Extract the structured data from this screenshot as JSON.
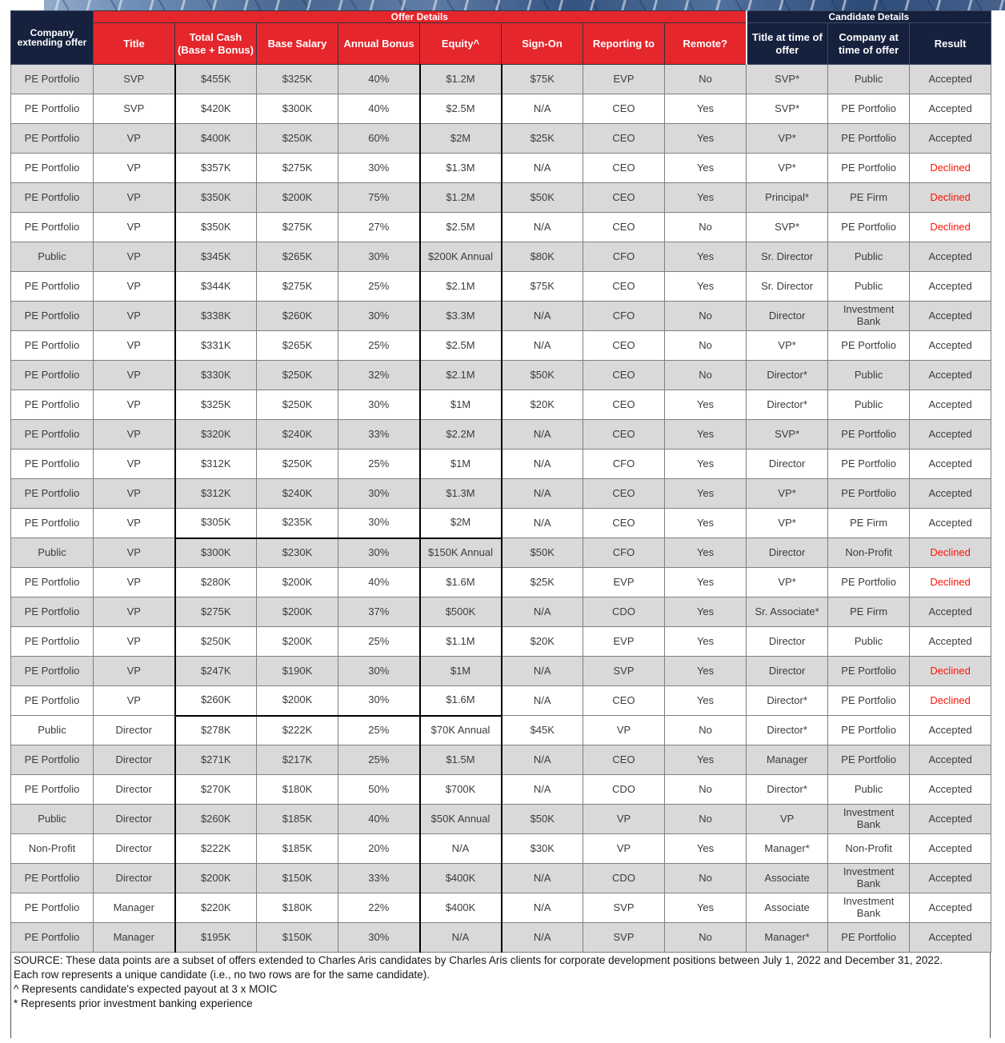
{
  "header": {
    "offer_group_label": "Offer Details",
    "candidate_group_label": "Candidate Details",
    "columns": [
      "Company extending offer",
      "Title",
      "Total Cash (Base + Bonus)",
      "Base Salary",
      "Annual Bonus",
      "Equity^",
      "Sign-On",
      "Reporting to",
      "Remote?",
      "Title at time of offer",
      "Company at time of offer",
      "Result"
    ]
  },
  "declined_value": "Declined",
  "colors": {
    "header_red": "#E5262C",
    "header_navy": "#16213E",
    "shaded_row": "#D9D9D9",
    "declined_text": "#FC1408"
  },
  "rows": [
    [
      "PE Portfolio",
      "SVP",
      "$455K",
      "$325K",
      "40%",
      "$1.2M",
      "$75K",
      "EVP",
      "No",
      "SVP*",
      "Public",
      "Accepted"
    ],
    [
      "PE Portfolio",
      "SVP",
      "$420K",
      "$300K",
      "40%",
      "$2.5M",
      "N/A",
      "CEO",
      "Yes",
      "SVP*",
      "PE Portfolio",
      "Accepted"
    ],
    [
      "PE Portfolio",
      "VP",
      "$400K",
      "$250K",
      "60%",
      "$2M",
      "$25K",
      "CEO",
      "Yes",
      "VP*",
      "PE Portfolio",
      "Accepted"
    ],
    [
      "PE Portfolio",
      "VP",
      "$357K",
      "$275K",
      "30%",
      "$1.3M",
      "N/A",
      "CEO",
      "Yes",
      "VP*",
      "PE Portfolio",
      "Declined"
    ],
    [
      "PE Portfolio",
      "VP",
      "$350K",
      "$200K",
      "75%",
      "$1.2M",
      "$50K",
      "CEO",
      "Yes",
      "Principal*",
      "PE Firm",
      "Declined"
    ],
    [
      "PE Portfolio",
      "VP",
      "$350K",
      "$275K",
      "27%",
      "$2.5M",
      "N/A",
      "CEO",
      "No",
      "SVP*",
      "PE Portfolio",
      "Declined"
    ],
    [
      "Public",
      "VP",
      "$345K",
      "$265K",
      "30%",
      "$200K Annual",
      "$80K",
      "CFO",
      "Yes",
      "Sr. Director",
      "Public",
      "Accepted"
    ],
    [
      "PE Portfolio",
      "VP",
      "$344K",
      "$275K",
      "25%",
      "$2.1M",
      "$75K",
      "CEO",
      "Yes",
      "Sr. Director",
      "Public",
      "Accepted"
    ],
    [
      "PE Portfolio",
      "VP",
      "$338K",
      "$260K",
      "30%",
      "$3.3M",
      "N/A",
      "CFO",
      "No",
      "Director",
      "Investment Bank",
      "Accepted"
    ],
    [
      "PE Portfolio",
      "VP",
      "$331K",
      "$265K",
      "25%",
      "$2.5M",
      "N/A",
      "CEO",
      "No",
      "VP*",
      "PE Portfolio",
      "Accepted"
    ],
    [
      "PE Portfolio",
      "VP",
      "$330K",
      "$250K",
      "32%",
      "$2.1M",
      "$50K",
      "CEO",
      "No",
      "Director*",
      "Public",
      "Accepted"
    ],
    [
      "PE Portfolio",
      "VP",
      "$325K",
      "$250K",
      "30%",
      "$1M",
      "$20K",
      "CEO",
      "Yes",
      "Director*",
      "Public",
      "Accepted"
    ],
    [
      "PE Portfolio",
      "VP",
      "$320K",
      "$240K",
      "33%",
      "$2.2M",
      "N/A",
      "CEO",
      "Yes",
      "SVP*",
      "PE Portfolio",
      "Accepted"
    ],
    [
      "PE Portfolio",
      "VP",
      "$312K",
      "$250K",
      "25%",
      "$1M",
      "N/A",
      "CFO",
      "Yes",
      "Director",
      "PE Portfolio",
      "Accepted"
    ],
    [
      "PE Portfolio",
      "VP",
      "$312K",
      "$240K",
      "30%",
      "$1.3M",
      "N/A",
      "CEO",
      "Yes",
      "VP*",
      "PE Portfolio",
      "Accepted"
    ],
    [
      "PE Portfolio",
      "VP",
      "$305K",
      "$235K",
      "30%",
      "$2M",
      "N/A",
      "CEO",
      "Yes",
      "VP*",
      "PE Firm",
      "Accepted"
    ],
    [
      "Public",
      "VP",
      "$300K",
      "$230K",
      "30%",
      "$150K Annual",
      "$50K",
      "CFO",
      "Yes",
      "Director",
      "Non-Profit",
      "Declined"
    ],
    [
      "PE Portfolio",
      "VP",
      "$280K",
      "$200K",
      "40%",
      "$1.6M",
      "$25K",
      "EVP",
      "Yes",
      "VP*",
      "PE Portfolio",
      "Declined"
    ],
    [
      "PE Portfolio",
      "VP",
      "$275K",
      "$200K",
      "37%",
      "$500K",
      "N/A",
      "CDO",
      "Yes",
      "Sr. Associate*",
      "PE Firm",
      "Accepted"
    ],
    [
      "PE Portfolio",
      "VP",
      "$250K",
      "$200K",
      "25%",
      "$1.1M",
      "$20K",
      "EVP",
      "Yes",
      "Director",
      "Public",
      "Accepted"
    ],
    [
      "PE Portfolio",
      "VP",
      "$247K",
      "$190K",
      "30%",
      "$1M",
      "N/A",
      "SVP",
      "Yes",
      "Director",
      "PE Portfolio",
      "Declined"
    ],
    [
      "PE Portfolio",
      "VP",
      "$260K",
      "$200K",
      "30%",
      "$1.6M",
      "N/A",
      "CEO",
      "Yes",
      "Director*",
      "PE Portfolio",
      "Declined"
    ],
    [
      "Public",
      "Director",
      "$278K",
      "$222K",
      "25%",
      "$70K Annual",
      "$45K",
      "VP",
      "No",
      "Director*",
      "PE Portfolio",
      "Accepted"
    ],
    [
      "PE Portfolio",
      "Director",
      "$271K",
      "$217K",
      "25%",
      "$1.5M",
      "N/A",
      "CEO",
      "Yes",
      "Manager",
      "PE Portfolio",
      "Accepted"
    ],
    [
      "PE Portfolio",
      "Director",
      "$270K",
      "$180K",
      "50%",
      "$700K",
      "N/A",
      "CDO",
      "No",
      "Director*",
      "Public",
      "Accepted"
    ],
    [
      "Public",
      "Director",
      "$260K",
      "$185K",
      "40%",
      "$50K Annual",
      "$50K",
      "VP",
      "No",
      "VP",
      "Investment Bank",
      "Accepted"
    ],
    [
      "Non-Profit",
      "Director",
      "$222K",
      "$185K",
      "20%",
      "N/A",
      "$30K",
      "VP",
      "Yes",
      "Manager*",
      "Non-Profit",
      "Accepted"
    ],
    [
      "PE Portfolio",
      "Director",
      "$200K",
      "$150K",
      "33%",
      "$400K",
      "N/A",
      "CDO",
      "No",
      "Associate",
      "Investment Bank",
      "Accepted"
    ],
    [
      "PE Portfolio",
      "Manager",
      "$220K",
      "$180K",
      "22%",
      "$400K",
      "N/A",
      "SVP",
      "Yes",
      "Associate",
      "Investment Bank",
      "Accepted"
    ],
    [
      "PE Portfolio",
      "Manager",
      "$195K",
      "$150K",
      "30%",
      "N/A",
      "N/A",
      "SVP",
      "No",
      "Manager*",
      "PE Portfolio",
      "Accepted"
    ]
  ],
  "footnotes": [
    "SOURCE: These data points are a subset of offers extended to Charles Aris candidates by Charles Aris clients for corporate development positions between July 1, 2022 and December 31, 2022.",
    "Each row represents a unique candidate (i.e., no two rows are for the same candidate).",
    "^ Represents candidate's expected payout at 3 x MOIC",
    "* Represents prior investment banking experience"
  ]
}
